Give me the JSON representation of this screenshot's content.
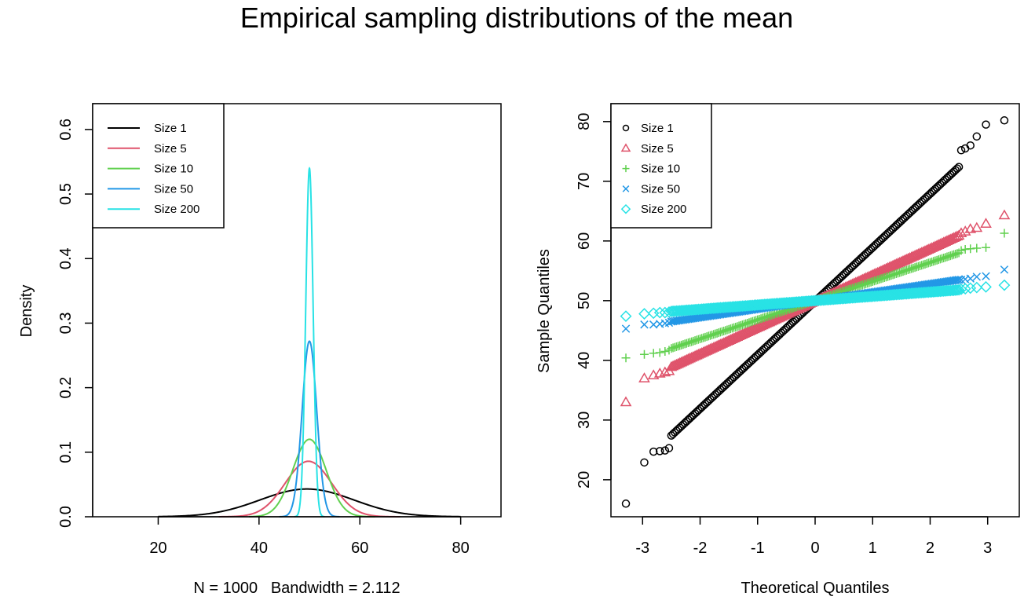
{
  "title": "Empirical sampling distributions of the mean",
  "colors": {
    "size1": "#000000",
    "size5": "#DF536B",
    "size10": "#61D04F",
    "size50": "#2297E6",
    "size200": "#28E2E5"
  },
  "legend_labels": [
    "Size 1",
    "Size 5",
    "Size 10",
    "Size 50",
    "Size 200"
  ],
  "chart_data": [
    {
      "type": "line",
      "title": "",
      "xlabel": "N = 1000   Bandwidth = 2.112",
      "ylabel": "Density",
      "xlim": [
        7,
        88
      ],
      "ylim": [
        0,
        0.64
      ],
      "xticks": [
        20,
        40,
        60,
        80
      ],
      "yticks": [
        0.0,
        0.1,
        0.2,
        0.3,
        0.4,
        0.5,
        0.6
      ],
      "ytick_labels": [
        "0.0",
        "0.1",
        "0.2",
        "0.3",
        "0.4",
        "0.5",
        "0.6"
      ],
      "legend_position": "top-left",
      "series": [
        {
          "name": "Size 1",
          "color_key": "size1",
          "mean": 49.5,
          "sd": 9.3,
          "from": 20,
          "to": 80,
          "peak": 0.043
        },
        {
          "name": "Size 5",
          "color_key": "size5",
          "mean": 49.8,
          "sd": 4.6,
          "from": 32,
          "to": 68,
          "peak": 0.086
        },
        {
          "name": "Size 10",
          "color_key": "size10",
          "mean": 50.0,
          "sd": 3.3,
          "from": 38,
          "to": 63,
          "peak": 0.12
        },
        {
          "name": "Size 50",
          "color_key": "size50",
          "mean": 50.0,
          "sd": 1.45,
          "from": 44,
          "to": 56,
          "peak": 0.272
        },
        {
          "name": "Size 200",
          "color_key": "size200",
          "mean": 50.0,
          "sd": 0.73,
          "from": 47,
          "to": 53,
          "peak": 0.54
        }
      ]
    },
    {
      "type": "scatter",
      "title": "",
      "xlabel": "Theoretical Quantiles",
      "ylabel": "Sample Quantiles",
      "xlim": [
        -3.55,
        3.55
      ],
      "ylim": [
        13.8,
        83.0
      ],
      "xticks": [
        -3,
        -2,
        -1,
        0,
        1,
        2,
        3
      ],
      "yticks": [
        20,
        30,
        40,
        50,
        60,
        70,
        80
      ],
      "legend_position": "top-left",
      "series": [
        {
          "name": "Size 1",
          "color_key": "size1",
          "marker": "circle",
          "intercept": 49.9,
          "slope": 9.0,
          "low_tail": [
            [
              -3.29,
              16.0
            ],
            [
              -2.97,
              22.9
            ],
            [
              -2.81,
              24.7
            ],
            [
              -2.7,
              24.8
            ],
            [
              -2.61,
              24.9
            ],
            [
              -2.54,
              25.3
            ]
          ],
          "high_tail": [
            [
              2.54,
              75.2
            ],
            [
              2.61,
              75.5
            ],
            [
              2.7,
              76.0
            ],
            [
              2.81,
              77.5
            ],
            [
              2.97,
              79.5
            ],
            [
              3.29,
              80.2
            ]
          ]
        },
        {
          "name": "Size 5",
          "color_key": "size5",
          "marker": "triangle",
          "intercept": 49.9,
          "slope": 4.4,
          "low_tail": [
            [
              -3.29,
              33.0
            ],
            [
              -2.97,
              37.0
            ],
            [
              -2.81,
              37.5
            ],
            [
              -2.7,
              37.8
            ],
            [
              -2.61,
              38.0
            ],
            [
              -2.54,
              38.2
            ]
          ],
          "high_tail": [
            [
              2.54,
              61.3
            ],
            [
              2.61,
              61.6
            ],
            [
              2.7,
              62.0
            ],
            [
              2.81,
              62.2
            ],
            [
              2.97,
              62.9
            ],
            [
              3.29,
              64.3
            ]
          ]
        },
        {
          "name": "Size 10",
          "color_key": "size10",
          "marker": "plus",
          "intercept": 50.0,
          "slope": 3.2,
          "low_tail": [
            [
              -3.29,
              40.4
            ],
            [
              -2.97,
              41.0
            ],
            [
              -2.81,
              41.2
            ],
            [
              -2.7,
              41.3
            ],
            [
              -2.61,
              41.5
            ],
            [
              -2.54,
              41.7
            ]
          ],
          "high_tail": [
            [
              2.54,
              58.4
            ],
            [
              2.61,
              58.6
            ],
            [
              2.7,
              58.7
            ],
            [
              2.81,
              58.8
            ],
            [
              2.97,
              58.9
            ],
            [
              3.29,
              61.3
            ]
          ]
        },
        {
          "name": "Size 50",
          "color_key": "size50",
          "marker": "cross",
          "intercept": 50.0,
          "slope": 1.4,
          "low_tail": [
            [
              -3.29,
              45.3
            ],
            [
              -2.97,
              46.0
            ],
            [
              -2.81,
              46.0
            ],
            [
              -2.7,
              46.1
            ],
            [
              -2.61,
              46.2
            ],
            [
              -2.54,
              46.3
            ]
          ],
          "high_tail": [
            [
              2.54,
              53.5
            ],
            [
              2.61,
              53.6
            ],
            [
              2.7,
              53.7
            ],
            [
              2.81,
              54.0
            ],
            [
              2.97,
              54.1
            ],
            [
              3.29,
              55.2
            ]
          ]
        },
        {
          "name": "Size 200",
          "color_key": "size200",
          "marker": "diamond",
          "intercept": 50.0,
          "slope": 0.72,
          "low_tail": [
            [
              -3.29,
              47.4
            ],
            [
              -2.97,
              47.8
            ],
            [
              -2.81,
              47.9
            ],
            [
              -2.7,
              48.0
            ],
            [
              -2.61,
              48.0
            ],
            [
              -2.54,
              48.1
            ]
          ],
          "high_tail": [
            [
              2.54,
              51.9
            ],
            [
              2.61,
              52.0
            ],
            [
              2.7,
              52.1
            ],
            [
              2.81,
              52.2
            ],
            [
              2.97,
              52.3
            ],
            [
              3.29,
              52.6
            ]
          ]
        }
      ]
    }
  ]
}
